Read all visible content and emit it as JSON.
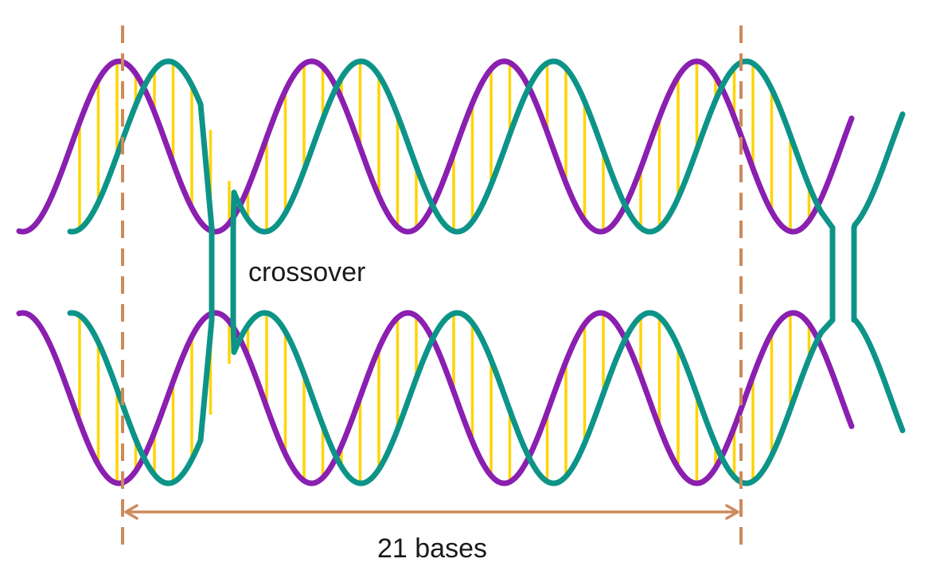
{
  "labels": {
    "crossover": "crossover",
    "spacing": "21 bases"
  },
  "colors": {
    "strand_purple": "#8a1fb0",
    "strand_teal": "#0d9488",
    "base_pair": "#ffd400",
    "guide": "#cd8a5a",
    "text": "#1a1a1a"
  },
  "icons": {
    "dimension_arrow": "double-headed-arrow"
  },
  "helices": [
    {
      "name": "top-helix",
      "strands": [
        "purple",
        "teal"
      ]
    },
    {
      "name": "bottom-helix",
      "strands": [
        "purple",
        "teal"
      ]
    }
  ],
  "crossovers": [
    {
      "name": "left-crossover",
      "strand": "teal",
      "labeled": true
    },
    {
      "name": "right-crossover",
      "strand": "teal",
      "labeled": false
    }
  ]
}
